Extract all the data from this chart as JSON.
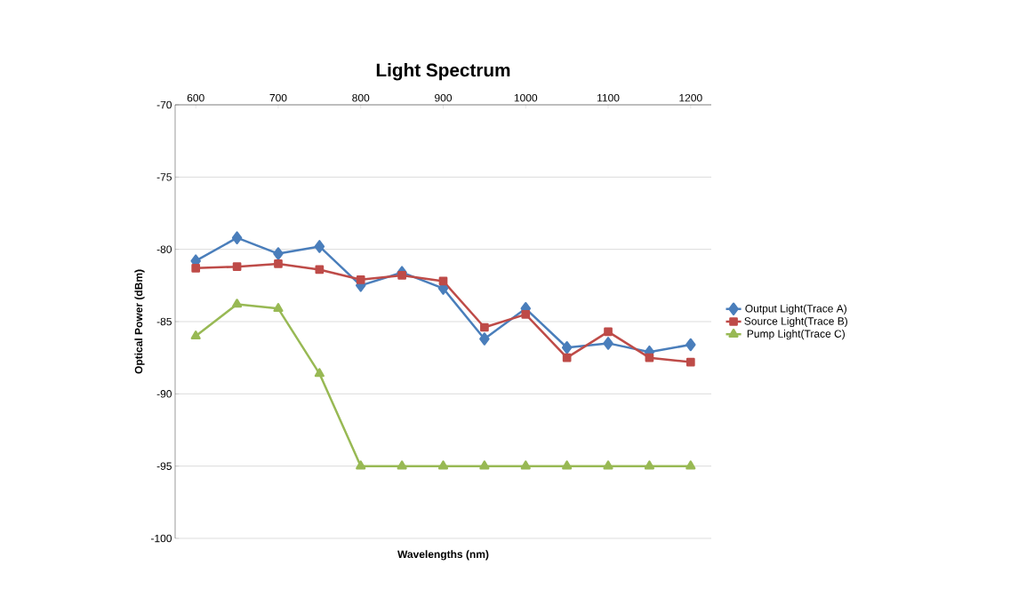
{
  "chart_data": {
    "type": "line",
    "title": "Light Spectrum",
    "xlabel": "Wavelengths (nm)",
    "ylabel": "Optical Power (dBm)",
    "x": [
      600,
      650,
      700,
      750,
      800,
      850,
      900,
      950,
      1000,
      1050,
      1100,
      1150,
      1200
    ],
    "series": [
      {
        "name": "Output Light(Trace A)",
        "color": "#4a7ebb",
        "marker": "diamond",
        "values": [
          -80.8,
          -79.2,
          -80.3,
          -79.8,
          -82.5,
          -81.6,
          -82.7,
          -86.2,
          -84.1,
          -86.8,
          -86.5,
          -87.1,
          -86.6
        ]
      },
      {
        "name": "Source Light(Trace B)",
        "color": "#be4b48",
        "marker": "square",
        "values": [
          -81.3,
          -81.2,
          -81.0,
          -81.4,
          -82.1,
          -81.8,
          -82.2,
          -85.4,
          -84.5,
          -87.5,
          -85.7,
          -87.5,
          -87.8
        ]
      },
      {
        "name": "Pump Light(Trace C)",
        "color": "#98b954",
        "marker": "triangle",
        "values": [
          -86.0,
          -83.8,
          -84.1,
          -88.6,
          -95.0,
          -95.0,
          -95.0,
          -95.0,
          -95.0,
          -95.0,
          -95.0,
          -95.0,
          -95.0
        ]
      }
    ],
    "xlim": [
      575,
      1225
    ],
    "xticks": [
      600,
      700,
      800,
      900,
      1000,
      1100,
      1200
    ],
    "ylim": [
      -100,
      -70
    ],
    "yticks": [
      -100,
      -95,
      -90,
      -85,
      -80,
      -75,
      -70
    ],
    "grid": "y",
    "legend": "right",
    "line_style": "solid"
  }
}
